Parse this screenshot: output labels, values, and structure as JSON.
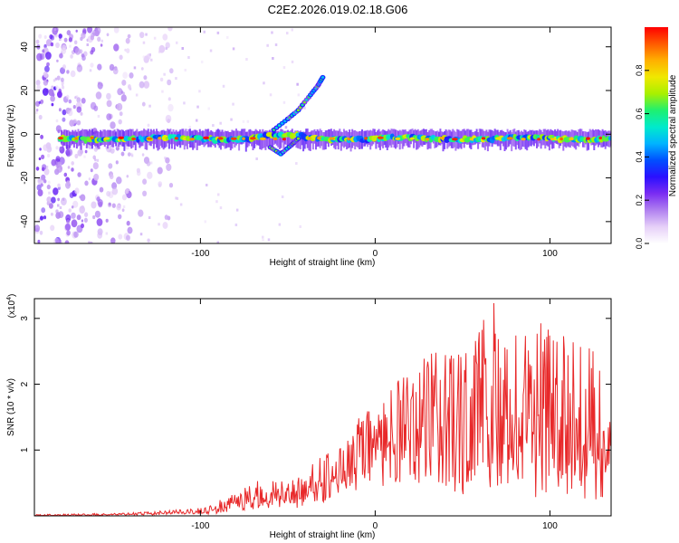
{
  "figure": {
    "title": "C2E2.2026.019.02.18.G06"
  },
  "chart_data": [
    {
      "type": "heatmap",
      "name": "spectrogram",
      "xlabel": "Height of straight line (km)",
      "ylabel": "Frequency (Hz)",
      "xlim": [
        -195,
        135
      ],
      "ylim": [
        -50,
        49
      ],
      "xticks": [
        -100,
        0,
        100
      ],
      "xticklabels": [
        "-100",
        "0",
        "100"
      ],
      "yticks": [
        -40,
        -20,
        0,
        20,
        40
      ],
      "yticklabels": [
        "-40",
        "-20",
        "0",
        "20",
        "40"
      ],
      "colorbar": {
        "label": "Normalized spectral amplitude",
        "range": [
          0.0,
          1.0
        ],
        "ticks": [
          0.0,
          0.2,
          0.4,
          0.6,
          0.8
        ],
        "ticklabels": [
          "0.0",
          "0.2",
          "0.4",
          "0.6",
          "0.8"
        ],
        "colors": [
          "#ffffff",
          "#e6d0f8",
          "#b080f0",
          "#7a2cf2",
          "#2a10ff",
          "#0050ff",
          "#00b4ff",
          "#00eacc",
          "#1ef070",
          "#a8f000",
          "#f0e800",
          "#ffb000",
          "#ff5a00",
          "#ff0000"
        ]
      },
      "main_band": {
        "frequency_hz": -2,
        "x_range_km": [
          -180,
          135
        ],
        "peak_amplitude": 1.0
      },
      "rising_track": {
        "points_km_hz": [
          [
            -58,
            2
          ],
          [
            -50,
            7
          ],
          [
            -44,
            11
          ],
          [
            -38,
            17
          ],
          [
            -33,
            22
          ],
          [
            -30,
            26
          ]
        ]
      },
      "falling_track": {
        "points_km_hz": [
          [
            -60,
            -6
          ],
          [
            -54,
            -9
          ],
          [
            -48,
            -5
          ],
          [
            -44,
            -2
          ]
        ]
      },
      "noise_columns_km": [
        -190,
        -182,
        -175,
        -168,
        -160,
        -150,
        -143,
        -132,
        -120
      ]
    },
    {
      "type": "line",
      "name": "snr",
      "xlabel": "Height of straight line (km)",
      "ylabel": "SNR (10 * v/v)",
      "multiplier": "(x10",
      "multiplier_exponent": "4",
      "multiplier_close": ")",
      "xlim": [
        -195,
        135
      ],
      "ylim": [
        0,
        3.3
      ],
      "xticks": [
        -100,
        0,
        100
      ],
      "xticklabels": [
        "-100",
        "0",
        "100"
      ],
      "yticks": [
        1,
        2,
        3
      ],
      "yticklabels": [
        "1",
        "2",
        "3"
      ],
      "series": [
        {
          "name": "SNR",
          "color": "#e8292a",
          "x": [
            -195,
            -170,
            -150,
            -130,
            -115,
            -100,
            -92,
            -85,
            -78,
            -70,
            -62,
            -55,
            -48,
            -40,
            -32,
            -26,
            -20,
            -14,
            -8,
            0,
            8,
            16,
            24,
            32,
            40,
            48,
            56,
            62,
            68,
            74,
            80,
            88,
            96,
            104,
            112,
            120,
            128,
            135
          ],
          "values": [
            0.02,
            0.03,
            0.04,
            0.06,
            0.09,
            0.12,
            0.2,
            0.3,
            0.38,
            0.5,
            0.62,
            0.55,
            0.55,
            0.62,
            0.98,
            0.95,
            1.05,
            1.25,
            1.55,
            1.7,
            1.95,
            2.15,
            2.35,
            2.55,
            2.55,
            2.45,
            2.8,
            3.05,
            3.25,
            2.7,
            2.95,
            3.05,
            3.0,
            2.95,
            2.75,
            2.7,
            2.45,
            2.62
          ],
          "floor": [
            0.0,
            0.0,
            0.01,
            0.01,
            0.02,
            0.02,
            0.03,
            0.05,
            0.08,
            0.1,
            0.1,
            0.1,
            0.1,
            0.12,
            0.15,
            0.25,
            0.35,
            0.3,
            0.35,
            0.4,
            0.4,
            0.45,
            0.5,
            0.5,
            0.45,
            0.3,
            0.2,
            0.25,
            0.3,
            0.35,
            0.25,
            0.2,
            0.3,
            0.25,
            0.35,
            0.25,
            0.2,
            0.35
          ]
        }
      ]
    }
  ]
}
